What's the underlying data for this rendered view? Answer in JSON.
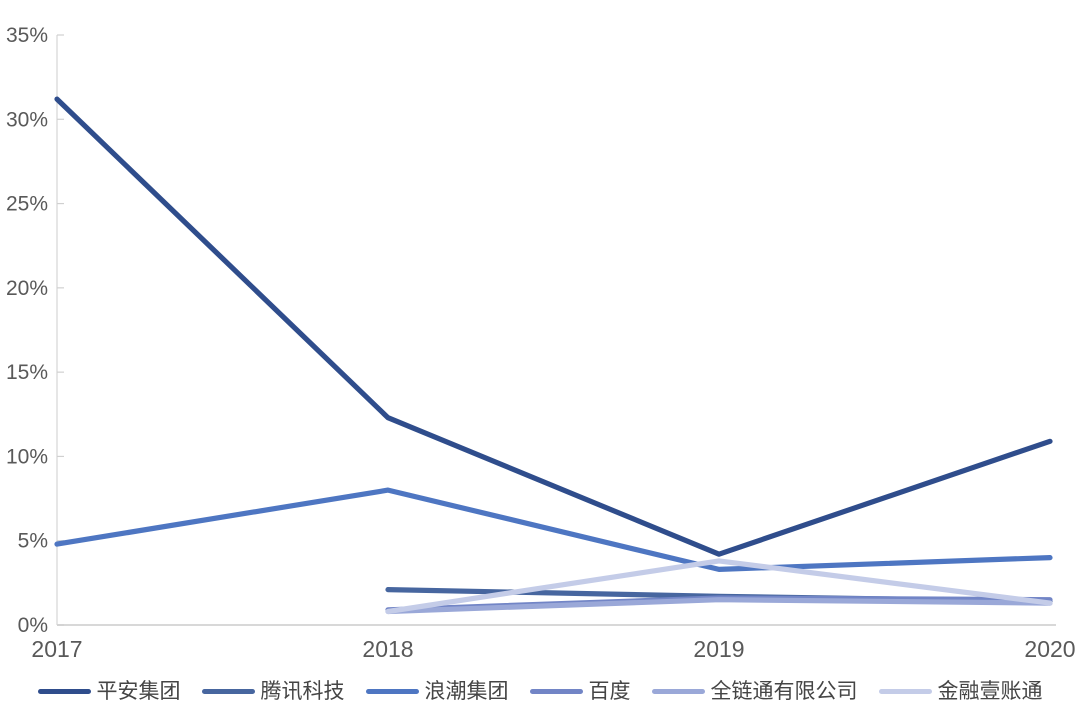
{
  "chart_data": {
    "type": "line",
    "x": [
      "2017",
      "2018",
      "2019",
      "2020"
    ],
    "series": [
      {
        "name": "平安集团",
        "slug": "pingan",
        "color": "#2F4D8C",
        "values": [
          31.2,
          12.3,
          4.2,
          10.9
        ]
      },
      {
        "name": "腾讯科技",
        "slug": "tencent",
        "color": "#47669F",
        "values": [
          null,
          2.1,
          1.7,
          1.4
        ]
      },
      {
        "name": "浪潮集团",
        "slug": "inspur",
        "color": "#4E76C2",
        "values": [
          4.8,
          8.0,
          3.3,
          4.0
        ]
      },
      {
        "name": "百度",
        "slug": "baidu",
        "color": "#7285C6",
        "values": [
          null,
          0.9,
          1.6,
          1.5
        ]
      },
      {
        "name": "全链通有限公司",
        "slug": "quanliantong",
        "color": "#9AA8D8",
        "values": [
          null,
          0.8,
          1.5,
          1.3
        ]
      },
      {
        "name": "金融壹账通",
        "slug": "oneconnect",
        "color": "#C4CCE8",
        "values": [
          null,
          0.8,
          3.8,
          1.3
        ]
      }
    ],
    "ylim": [
      0,
      35
    ],
    "ytick_step": 5,
    "ytick_labels": [
      "0%",
      "5%",
      "10%",
      "15%",
      "20%",
      "25%",
      "30%",
      "35%"
    ],
    "xtick_labels": [
      "2017",
      "2018",
      "2019",
      "2020"
    ],
    "grid": false,
    "legend_position": "bottom",
    "title": "",
    "xlabel": "",
    "ylabel": "",
    "axis_color": "#D8D8D8",
    "tick_color": "#D0D0D0",
    "label_color": "#595959",
    "legend_text_color": "#454545",
    "background_color": "#FFFFFF"
  }
}
